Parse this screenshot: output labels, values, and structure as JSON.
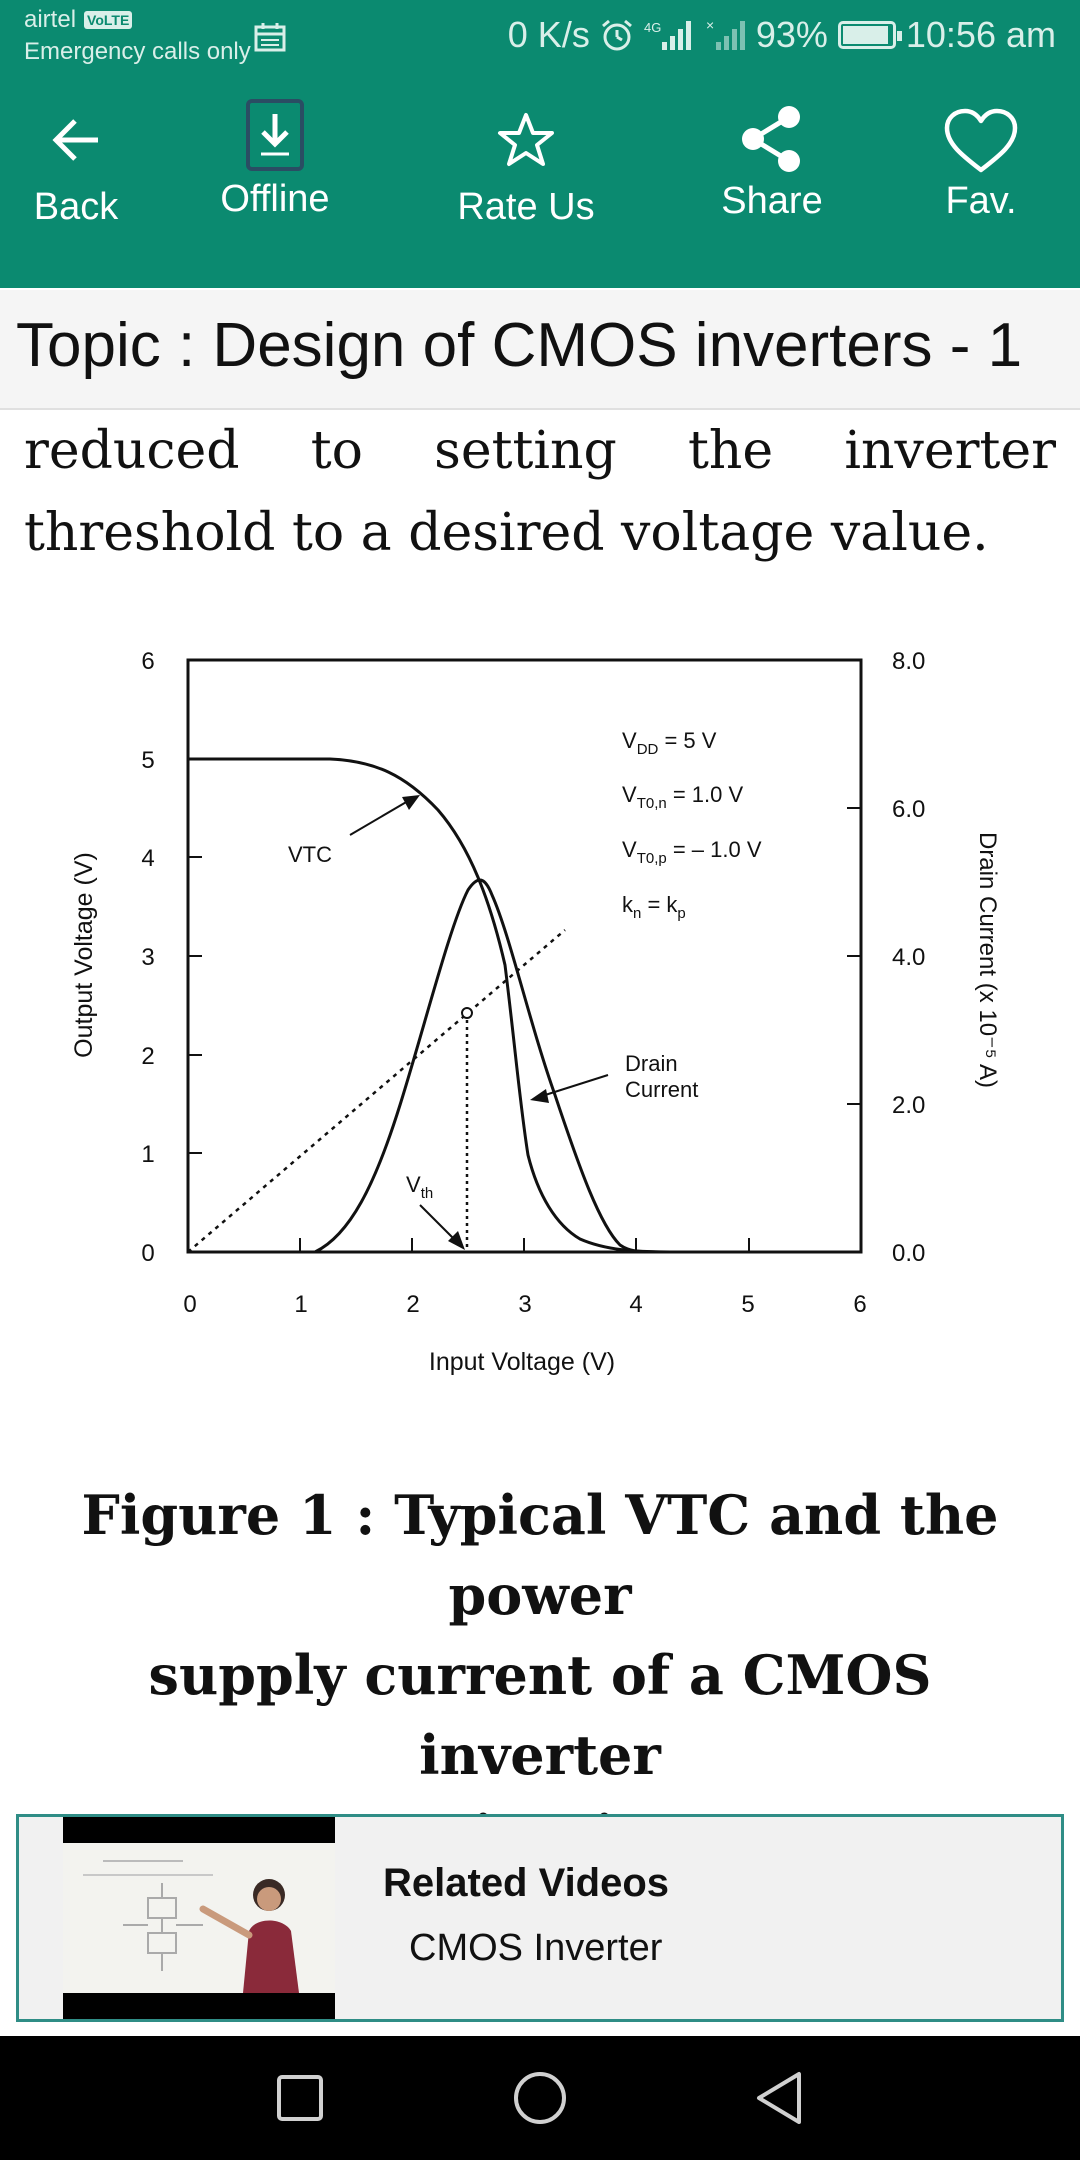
{
  "status_bar": {
    "carrier": "airtel",
    "volte": "VoLTE",
    "emergency": "Emergency calls only",
    "speed": "0 K/s",
    "network": "4G",
    "battery": "93%",
    "battery_level": 0.93,
    "time": "10:56 am"
  },
  "toolbar": {
    "back": "Back",
    "offline": "Offline",
    "rate": "Rate Us",
    "share": "Share",
    "fav": "Fav."
  },
  "topic": {
    "title": "Topic : Design of CMOS inverters - 1"
  },
  "content": {
    "line1": "reduced to setting the inverter",
    "line2": "threshold to a desired voltage value."
  },
  "figure": {
    "yticks_left": [
      "0",
      "1",
      "2",
      "3",
      "4",
      "5",
      "6"
    ],
    "yticks_right": [
      "0.0",
      "2.0",
      "4.0",
      "6.0",
      "8.0"
    ],
    "xticks": [
      "0",
      "1",
      "2",
      "3",
      "4",
      "5",
      "6"
    ],
    "ylabel_left": "Output Voltage  (V)",
    "ylabel_right": "Drain Current (x 10⁻⁵ A)",
    "xlabel": "Input Voltage  (V)",
    "vtc_label": "VTC",
    "drain_label_1": "Drain",
    "drain_label_2": "Current",
    "vth_label": "V",
    "vth_sub": "th",
    "param_vdd": "V",
    "param_vdd_sub": "DD",
    "param_vdd_val": " = 5 V",
    "param_vton": "V",
    "param_vton_sub": "T0,n",
    "param_vton_val": " = 1.0 V",
    "param_vtop": "V",
    "param_vtop_sub": "T0,p",
    "param_vtop_val": " = – 1.0 V",
    "param_k": "k",
    "param_k_sub_n": "n",
    "param_k_mid": " = k",
    "param_k_sub_p": "p"
  },
  "caption": {
    "line1": "Figure 1 : Typical VTC and the power",
    "line2": "supply current of a CMOS inverter",
    "line3": "circuit"
  },
  "related": {
    "title": "Related Videos",
    "subtitle": "CMOS Inverter"
  },
  "colors": {
    "primary": "#0b8a70",
    "card_border": "#2f8d86"
  }
}
